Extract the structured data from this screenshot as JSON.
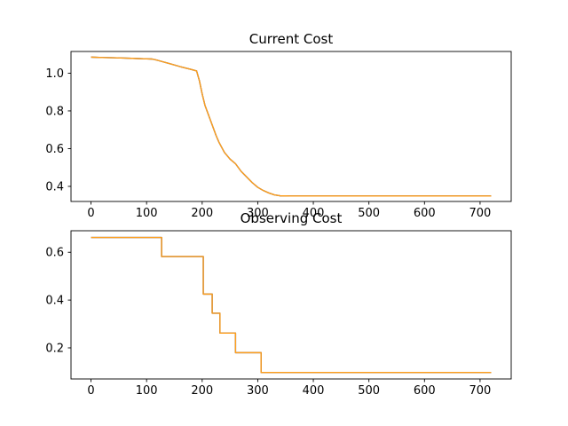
{
  "chart_data": [
    {
      "type": "line",
      "title": "Current Cost",
      "xlabel": "",
      "ylabel": "",
      "xlim": [
        -36,
        756
      ],
      "ylim": [
        0.32,
        1.115
      ],
      "xticks": [
        0,
        100,
        200,
        300,
        400,
        500,
        600,
        700
      ],
      "xtick_labels": [
        "0",
        "100",
        "200",
        "300",
        "400",
        "500",
        "600",
        "700"
      ],
      "yticks": [
        0.4,
        0.6,
        0.8,
        1.0
      ],
      "ytick_labels": [
        "0.4",
        "0.6",
        "0.8",
        "1.0"
      ],
      "step": false,
      "series": [
        {
          "color": "#1f3a7a",
          "x": [
            0,
            20,
            40,
            60,
            80,
            100,
            110,
            120,
            140,
            160,
            180,
            190,
            195,
            200,
            205,
            210,
            215,
            220,
            225,
            230,
            240,
            250,
            260,
            265,
            270,
            280,
            290,
            300,
            310,
            320,
            330,
            340,
            360,
            400,
            500,
            600,
            720
          ],
          "y": [
            1.085,
            1.083,
            1.082,
            1.08,
            1.078,
            1.076,
            1.075,
            1.068,
            1.052,
            1.035,
            1.02,
            1.012,
            0.96,
            0.89,
            0.83,
            0.79,
            0.75,
            0.71,
            0.67,
            0.635,
            0.58,
            0.545,
            0.52,
            0.5,
            0.48,
            0.45,
            0.42,
            0.395,
            0.378,
            0.365,
            0.355,
            0.35,
            0.349,
            0.349,
            0.349,
            0.349,
            0.349
          ]
        },
        {
          "color": "#ff9f1c",
          "x": [
            0,
            20,
            40,
            60,
            80,
            100,
            110,
            120,
            140,
            160,
            180,
            190,
            195,
            200,
            205,
            210,
            215,
            220,
            225,
            230,
            240,
            250,
            260,
            265,
            270,
            280,
            290,
            300,
            310,
            320,
            330,
            340,
            360,
            400,
            500,
            600,
            720
          ],
          "y": [
            1.085,
            1.083,
            1.082,
            1.08,
            1.078,
            1.076,
            1.075,
            1.068,
            1.052,
            1.035,
            1.02,
            1.012,
            0.96,
            0.89,
            0.83,
            0.79,
            0.75,
            0.71,
            0.67,
            0.635,
            0.58,
            0.545,
            0.52,
            0.5,
            0.48,
            0.45,
            0.42,
            0.395,
            0.378,
            0.365,
            0.355,
            0.35,
            0.349,
            0.349,
            0.349,
            0.349,
            0.349
          ]
        }
      ]
    },
    {
      "type": "line",
      "title": "Observing Cost",
      "xlabel": "",
      "ylabel": "",
      "xlim": [
        -36,
        756
      ],
      "ylim": [
        0.07,
        0.69
      ],
      "xticks": [
        0,
        100,
        200,
        300,
        400,
        500,
        600,
        700
      ],
      "xtick_labels": [
        "0",
        "100",
        "200",
        "300",
        "400",
        "500",
        "600",
        "700"
      ],
      "yticks": [
        0.2,
        0.4,
        0.6
      ],
      "ytick_labels": [
        "0.2",
        "0.4",
        "0.6"
      ],
      "step": true,
      "series": [
        {
          "color": "#1f3a7a",
          "x": [
            0,
            127,
            202,
            218,
            232,
            260,
            306,
            720
          ],
          "y": [
            0.662,
            0.582,
            0.425,
            0.345,
            0.262,
            0.18,
            0.097,
            0.097
          ]
        },
        {
          "color": "#ff9f1c",
          "x": [
            0,
            127,
            202,
            218,
            232,
            260,
            306,
            720
          ],
          "y": [
            0.662,
            0.582,
            0.425,
            0.345,
            0.262,
            0.18,
            0.097,
            0.097
          ]
        }
      ]
    }
  ]
}
